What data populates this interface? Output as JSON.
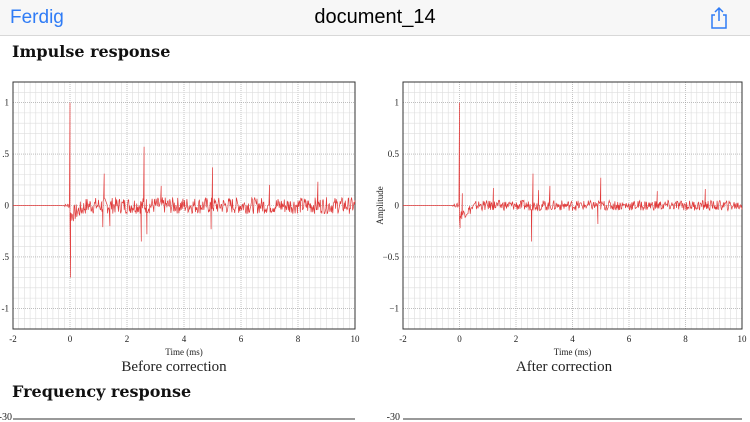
{
  "navbar": {
    "done_label": "Ferdig",
    "title": "document_14",
    "share_icon": "share-icon"
  },
  "sections": {
    "impulse_title": "Impulse response",
    "frequency_title": "Frequency response"
  },
  "frequency_partial_ticks": [
    "-30",
    "-30"
  ],
  "chart_data": [
    {
      "type": "line",
      "title": "Before correction",
      "xlabel": "Time (ms)",
      "ylabel": "",
      "xlim": [
        -2,
        10
      ],
      "ylim": [
        -1.2,
        1.2
      ],
      "xticks": [
        "-2",
        "0",
        "2",
        "4",
        "6",
        "8",
        "10"
      ],
      "yticks": [
        "1",
        ".5",
        "0",
        ".5",
        "-1"
      ],
      "grid": true,
      "color": "#e03a3a",
      "spikes": [
        [
          0,
          1.0
        ],
        [
          0.02,
          -0.7
        ],
        [
          1.2,
          0.31
        ],
        [
          1.15,
          -0.21
        ],
        [
          1.4,
          -0.2
        ],
        [
          2.6,
          0.57
        ],
        [
          2.5,
          -0.35
        ],
        [
          2.7,
          -0.28
        ],
        [
          3.2,
          0.19
        ],
        [
          5.0,
          0.37
        ],
        [
          4.95,
          -0.23
        ],
        [
          7.0,
          0.2
        ],
        [
          8.7,
          0.23
        ]
      ],
      "noise_amplitude": 0.08
    },
    {
      "type": "line",
      "title": "After correction",
      "xlabel": "Time (ms)",
      "ylabel": "Amplitude",
      "xlim": [
        -2,
        10
      ],
      "ylim": [
        -1.2,
        1.2
      ],
      "xticks": [
        "-2",
        "0",
        "2",
        "4",
        "6",
        "8",
        "10"
      ],
      "yticks": [
        "1",
        "0.5",
        "0",
        "−0.5",
        "−1"
      ],
      "grid": true,
      "color": "#e03a3a",
      "spikes": [
        [
          0,
          1.0
        ],
        [
          0.02,
          -0.22
        ],
        [
          0.1,
          0.12
        ],
        [
          1.2,
          0.17
        ],
        [
          2.6,
          0.31
        ],
        [
          2.55,
          -0.35
        ],
        [
          2.8,
          0.15
        ],
        [
          3.2,
          0.19
        ],
        [
          5.0,
          0.27
        ],
        [
          4.9,
          -0.18
        ],
        [
          7.0,
          0.14
        ],
        [
          8.7,
          0.16
        ]
      ],
      "noise_amplitude": 0.05
    }
  ]
}
